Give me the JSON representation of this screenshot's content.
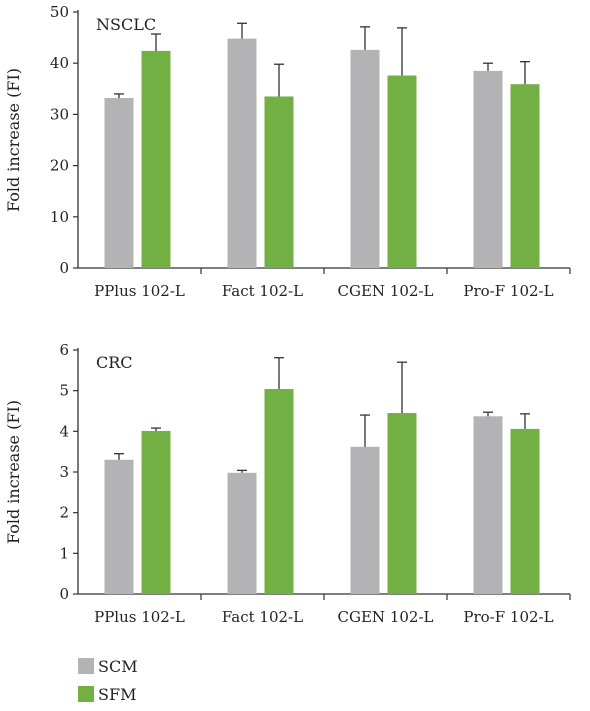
{
  "colors": {
    "SCM": "#b3b3b5",
    "SFM": "#72b043",
    "axis": "#333333"
  },
  "legend": [
    {
      "name": "SCM",
      "color": "#b3b3b5"
    },
    {
      "name": "SFM",
      "color": "#72b043"
    }
  ],
  "chart_data": [
    {
      "type": "bar",
      "title": "NSCLC",
      "ylabel": "Fold increase (FI)",
      "xlabel": "",
      "categories": [
        "PPlus 102-L",
        "Fact 102-L",
        "CGEN 102-L",
        "Pro-F 102-L"
      ],
      "ylim": [
        0,
        50
      ],
      "yticks": [
        0,
        10,
        20,
        30,
        40,
        50
      ],
      "series": [
        {
          "name": "SCM",
          "values": [
            33.2,
            44.8,
            42.6,
            38.5
          ],
          "errors": [
            0.8,
            3.0,
            4.5,
            1.5
          ]
        },
        {
          "name": "SFM",
          "values": [
            42.4,
            33.5,
            37.6,
            35.9
          ],
          "errors": [
            3.3,
            6.3,
            9.3,
            4.4
          ]
        }
      ]
    },
    {
      "type": "bar",
      "title": "CRC",
      "ylabel": "Fold increase (FI)",
      "xlabel": "",
      "categories": [
        "PPlus 102-L",
        "Fact 102-L",
        "CGEN 102-L",
        "Pro-F 102-L"
      ],
      "ylim": [
        0,
        6
      ],
      "yticks": [
        0,
        1,
        2,
        3,
        4,
        5,
        6
      ],
      "series": [
        {
          "name": "SCM",
          "values": [
            3.3,
            2.98,
            3.62,
            4.37
          ],
          "errors": [
            0.15,
            0.06,
            0.78,
            0.1
          ]
        },
        {
          "name": "SFM",
          "values": [
            4.01,
            5.04,
            4.45,
            4.06
          ],
          "errors": [
            0.07,
            0.77,
            1.25,
            0.37
          ]
        }
      ]
    }
  ]
}
